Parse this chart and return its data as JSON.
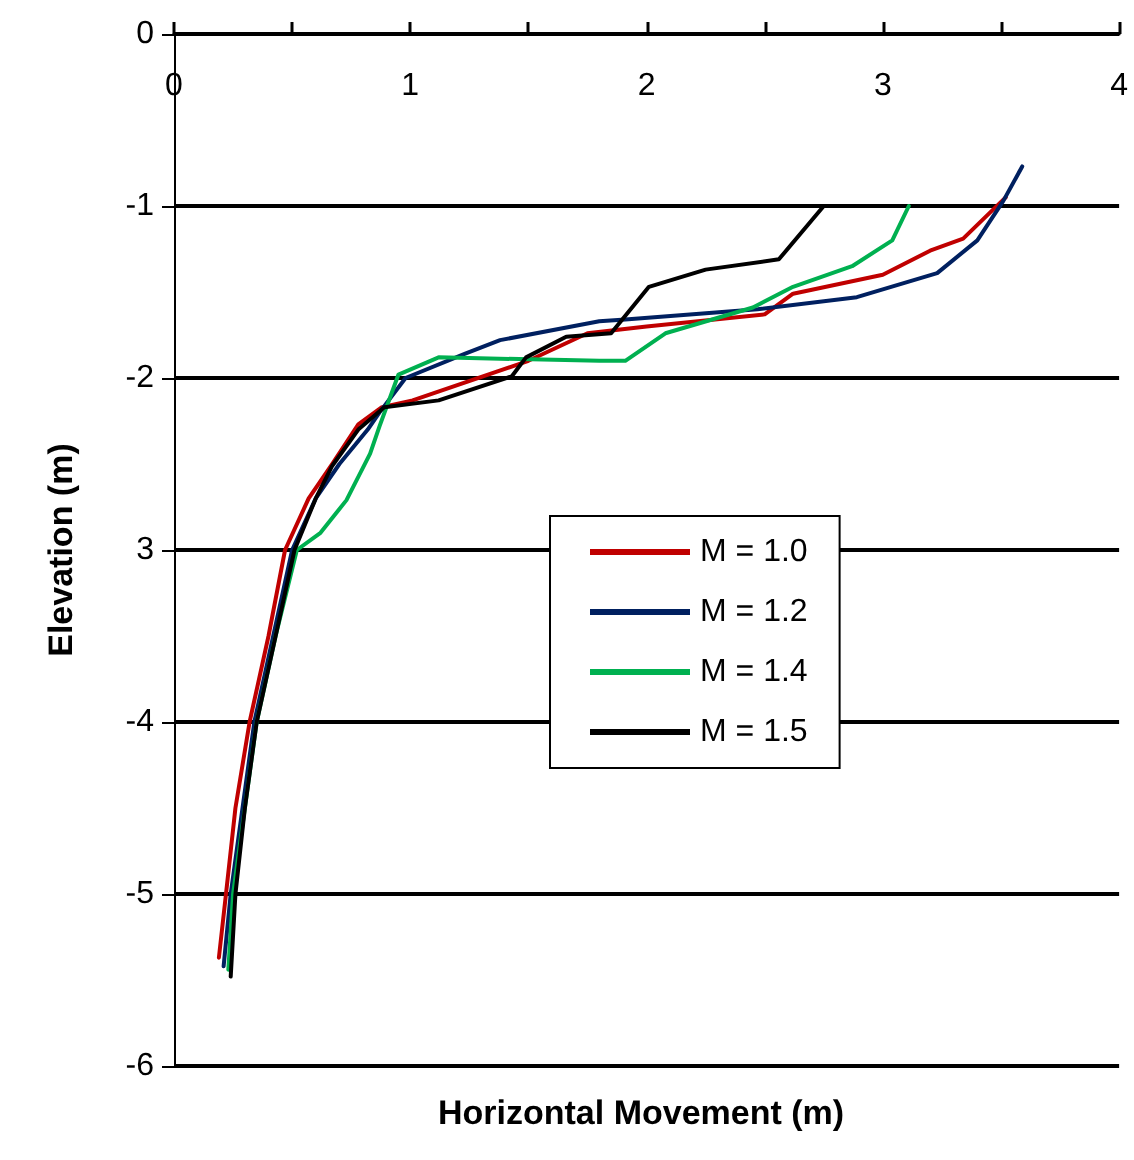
{
  "chart_data": {
    "type": "line",
    "xlabel": "Horizontal Movement (m)",
    "ylabel": "Elevation (m)",
    "xlim": [
      0,
      4
    ],
    "xticks": [
      0,
      {
        "value": 0.5,
        "label": null
      },
      1,
      {
        "value": 1.5,
        "label": null
      },
      2,
      {
        "value": 2.5,
        "label": null
      },
      3,
      {
        "value": 3.5,
        "label": null
      },
      4
    ],
    "ylim": [
      -6,
      0
    ],
    "yticks": [
      -6,
      -5,
      -4,
      {
        "value": -3,
        "label": "3"
      },
      -2,
      -1,
      0
    ],
    "grid": "y",
    "legend": "right",
    "marker": "none",
    "line_style": "solid",
    "series": [
      {
        "name": "M = 1.0",
        "color": "#c00000",
        "x": [
          0.19,
          0.22,
          0.26,
          0.32,
          0.4,
          0.47,
          0.57,
          0.67,
          0.78,
          0.88,
          1.01,
          1.5,
          1.75,
          2.0,
          2.5,
          2.62,
          3.0,
          3.2,
          3.34,
          3.52
        ],
        "values": [
          -5.37,
          -5,
          -4.5,
          -4,
          -3.5,
          -3,
          -2.7,
          -2.5,
          -2.27,
          -2.17,
          -2.13,
          -1.9,
          -1.74,
          -1.7,
          -1.63,
          -1.51,
          -1.4,
          -1.26,
          -1.19,
          -0.95
        ]
      },
      {
        "name": "M = 1.2",
        "color": "#002060",
        "x": [
          0.21,
          0.24,
          0.29,
          0.34,
          0.42,
          0.5,
          0.6,
          0.7,
          0.82,
          0.87,
          0.98,
          1.23,
          1.38,
          1.8,
          1.91,
          2.47,
          2.89,
          3.23,
          3.4,
          3.51,
          3.59
        ],
        "values": [
          -5.42,
          -5,
          -4.5,
          -4,
          -3.5,
          -3,
          -2.7,
          -2.5,
          -2.3,
          -2.2,
          -2.0,
          -1.86,
          -1.78,
          -1.67,
          -1.66,
          -1.6,
          -1.53,
          -1.39,
          -1.2,
          -0.97,
          -0.77
        ]
      },
      {
        "name": "M = 1.4",
        "color": "#00b050",
        "x": [
          0.23,
          0.25,
          0.3,
          0.35,
          0.43,
          0.52,
          0.62,
          0.73,
          0.83,
          0.87,
          0.95,
          1.12,
          1.8,
          1.91,
          2.08,
          2.45,
          2.62,
          2.87,
          3.04,
          3.11
        ],
        "values": [
          -5.44,
          -5,
          -4.5,
          -4,
          -3.5,
          -3,
          -2.9,
          -2.71,
          -2.44,
          -2.28,
          -1.98,
          -1.88,
          -1.9,
          -1.9,
          -1.74,
          -1.59,
          -1.47,
          -1.35,
          -1.2,
          -1.0
        ]
      },
      {
        "name": "M = 1.5",
        "color": "#000000",
        "x": [
          0.24,
          0.26,
          0.3,
          0.35,
          0.43,
          0.51,
          0.6,
          0.67,
          0.78,
          0.89,
          1.12,
          1.43,
          1.49,
          1.66,
          1.85,
          2.01,
          2.25,
          2.56,
          2.75
        ],
        "values": [
          -5.48,
          -5,
          -4.5,
          -4,
          -3.5,
          -3,
          -2.7,
          -2.51,
          -2.3,
          -2.17,
          -2.13,
          -1.99,
          -1.88,
          -1.76,
          -1.74,
          -1.47,
          -1.37,
          -1.31,
          -1.0
        ]
      }
    ]
  }
}
